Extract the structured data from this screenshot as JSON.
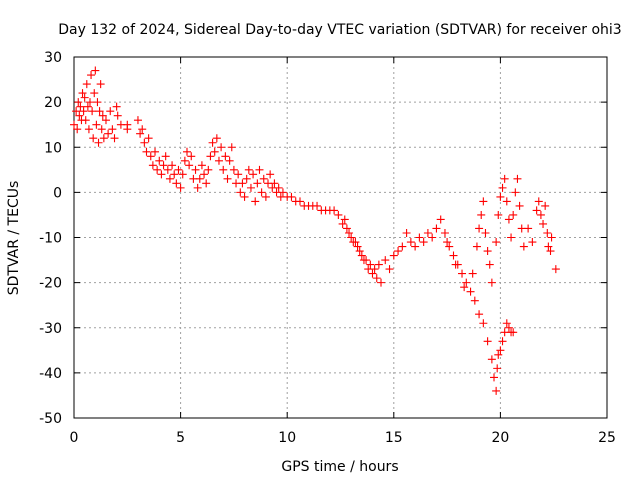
{
  "chart_data": {
    "type": "scatter",
    "title": "Day 132 of 2024, Sidereal Day-to-day VTEC variation (SDTVAR) for receiver ohi3",
    "xlabel": "GPS time / hours",
    "ylabel": "SDTVAR / TECUs",
    "xlim": [
      0,
      25
    ],
    "ylim": [
      -50,
      30
    ],
    "xticks": [
      0,
      5,
      10,
      15,
      20,
      25
    ],
    "yticks": [
      -50,
      -40,
      -30,
      -20,
      -10,
      0,
      10,
      20,
      30
    ],
    "xtick_labels": [
      "0",
      "5",
      "10",
      "15",
      "20",
      "25"
    ],
    "ytick_labels": [
      "-50",
      "-40",
      "-30",
      "-20",
      "-10",
      "0",
      "10",
      "20",
      "30"
    ],
    "grid": true,
    "marker": "+",
    "color": "#ff0000",
    "series": [
      {
        "name": "SDTVAR",
        "points": [
          [
            0.0,
            15
          ],
          [
            0.1,
            18
          ],
          [
            0.15,
            14
          ],
          [
            0.2,
            20
          ],
          [
            0.25,
            17
          ],
          [
            0.3,
            19
          ],
          [
            0.35,
            16
          ],
          [
            0.4,
            22
          ],
          [
            0.45,
            18
          ],
          [
            0.5,
            21
          ],
          [
            0.55,
            16
          ],
          [
            0.6,
            24
          ],
          [
            0.65,
            19
          ],
          [
            0.7,
            14
          ],
          [
            0.75,
            20
          ],
          [
            0.8,
            26
          ],
          [
            0.85,
            18
          ],
          [
            0.9,
            12
          ],
          [
            0.95,
            22
          ],
          [
            1.0,
            27
          ],
          [
            1.05,
            15
          ],
          [
            1.1,
            20
          ],
          [
            1.15,
            11
          ],
          [
            1.2,
            18
          ],
          [
            1.25,
            24
          ],
          [
            1.3,
            14
          ],
          [
            1.35,
            17
          ],
          [
            1.4,
            12
          ],
          [
            1.5,
            16
          ],
          [
            1.6,
            13
          ],
          [
            1.7,
            18
          ],
          [
            1.8,
            14
          ],
          [
            1.9,
            12
          ],
          [
            2.0,
            19
          ],
          [
            2.05,
            17
          ],
          [
            2.2,
            15
          ],
          [
            2.5,
            15
          ],
          [
            2.5,
            14
          ],
          [
            3.0,
            16
          ],
          [
            3.1,
            13
          ],
          [
            3.2,
            14
          ],
          [
            3.3,
            11
          ],
          [
            3.4,
            9
          ],
          [
            3.5,
            12
          ],
          [
            3.6,
            8
          ],
          [
            3.7,
            6
          ],
          [
            3.8,
            9
          ],
          [
            3.9,
            5
          ],
          [
            4.0,
            7
          ],
          [
            4.1,
            4
          ],
          [
            4.2,
            6
          ],
          [
            4.3,
            8
          ],
          [
            4.4,
            5
          ],
          [
            4.5,
            3
          ],
          [
            4.6,
            6
          ],
          [
            4.7,
            4
          ],
          [
            4.8,
            2
          ],
          [
            4.9,
            5
          ],
          [
            5.0,
            1
          ],
          [
            5.1,
            4
          ],
          [
            5.2,
            7
          ],
          [
            5.3,
            9
          ],
          [
            5.4,
            6
          ],
          [
            5.5,
            8
          ],
          [
            5.6,
            3
          ],
          [
            5.7,
            5
          ],
          [
            5.8,
            1
          ],
          [
            5.9,
            3
          ],
          [
            6.0,
            6
          ],
          [
            6.1,
            4
          ],
          [
            6.2,
            2
          ],
          [
            6.3,
            5
          ],
          [
            6.4,
            8
          ],
          [
            6.5,
            11
          ],
          [
            6.6,
            9
          ],
          [
            6.7,
            12
          ],
          [
            6.8,
            7
          ],
          [
            6.9,
            10
          ],
          [
            7.0,
            5
          ],
          [
            7.1,
            8
          ],
          [
            7.2,
            3
          ],
          [
            7.3,
            7
          ],
          [
            7.4,
            10
          ],
          [
            7.5,
            5
          ],
          [
            7.6,
            2
          ],
          [
            7.7,
            4
          ],
          [
            7.8,
            0
          ],
          [
            7.9,
            2
          ],
          [
            8.0,
            -1
          ],
          [
            8.1,
            3
          ],
          [
            8.2,
            5
          ],
          [
            8.3,
            1
          ],
          [
            8.4,
            4
          ],
          [
            8.5,
            -2
          ],
          [
            8.6,
            2
          ],
          [
            8.7,
            5
          ],
          [
            8.8,
            0
          ],
          [
            8.9,
            3
          ],
          [
            9.0,
            -1
          ],
          [
            9.1,
            2
          ],
          [
            9.2,
            4
          ],
          [
            9.3,
            1
          ],
          [
            9.4,
            2
          ],
          [
            9.5,
            0
          ],
          [
            9.6,
            1
          ],
          [
            9.7,
            -1
          ],
          [
            9.8,
            0
          ],
          [
            10.0,
            -1
          ],
          [
            10.2,
            -1
          ],
          [
            10.4,
            -2
          ],
          [
            10.6,
            -2
          ],
          [
            10.8,
            -3
          ],
          [
            11.0,
            -3
          ],
          [
            11.2,
            -3
          ],
          [
            11.4,
            -3
          ],
          [
            11.6,
            -4
          ],
          [
            11.8,
            -4
          ],
          [
            12.0,
            -4
          ],
          [
            12.2,
            -4
          ],
          [
            12.4,
            -5
          ],
          [
            12.6,
            -7
          ],
          [
            12.8,
            -8
          ],
          [
            13.0,
            -10
          ],
          [
            13.2,
            -11
          ],
          [
            13.4,
            -13
          ],
          [
            13.6,
            -15
          ],
          [
            13.8,
            -17
          ],
          [
            14.0,
            -18
          ],
          [
            14.2,
            -19
          ],
          [
            14.4,
            -20
          ],
          [
            12.7,
            -6
          ],
          [
            12.9,
            -9
          ],
          [
            13.1,
            -11
          ],
          [
            13.3,
            -12
          ],
          [
            13.5,
            -14
          ],
          [
            13.7,
            -15
          ],
          [
            13.9,
            -16
          ],
          [
            14.1,
            -17
          ],
          [
            14.3,
            -16
          ],
          [
            14.6,
            -15
          ],
          [
            14.8,
            -17
          ],
          [
            15.0,
            -14
          ],
          [
            15.2,
            -13
          ],
          [
            15.4,
            -12
          ],
          [
            15.6,
            -9
          ],
          [
            15.8,
            -11
          ],
          [
            16.0,
            -12
          ],
          [
            16.2,
            -10
          ],
          [
            16.4,
            -11
          ],
          [
            16.6,
            -9
          ],
          [
            16.8,
            -10
          ],
          [
            17.0,
            -8
          ],
          [
            17.2,
            -6
          ],
          [
            17.4,
            -9
          ],
          [
            17.6,
            -12
          ],
          [
            17.8,
            -14
          ],
          [
            18.0,
            -16
          ],
          [
            18.2,
            -18
          ],
          [
            18.4,
            -20
          ],
          [
            18.6,
            -22
          ],
          [
            18.8,
            -24
          ],
          [
            19.0,
            -27
          ],
          [
            19.2,
            -29
          ],
          [
            19.4,
            -33
          ],
          [
            19.6,
            -37
          ],
          [
            19.7,
            -41
          ],
          [
            19.8,
            -44
          ],
          [
            19.85,
            -39
          ],
          [
            19.9,
            -36
          ],
          [
            20.0,
            -35
          ],
          [
            20.1,
            -33
          ],
          [
            20.2,
            -31
          ],
          [
            20.3,
            -29
          ],
          [
            20.4,
            -30
          ],
          [
            20.5,
            -31
          ],
          [
            20.6,
            -31
          ],
          [
            17.5,
            -11
          ],
          [
            17.9,
            -16
          ],
          [
            18.3,
            -21
          ],
          [
            18.7,
            -18
          ],
          [
            18.9,
            -12
          ],
          [
            19.0,
            -8
          ],
          [
            19.1,
            -5
          ],
          [
            19.2,
            -2
          ],
          [
            19.3,
            -9
          ],
          [
            19.4,
            -13
          ],
          [
            19.5,
            -16
          ],
          [
            19.6,
            -20
          ],
          [
            19.8,
            -11
          ],
          [
            19.9,
            -5
          ],
          [
            20.0,
            -1
          ],
          [
            20.1,
            1
          ],
          [
            20.2,
            3
          ],
          [
            20.3,
            -2
          ],
          [
            20.4,
            -6
          ],
          [
            20.5,
            -10
          ],
          [
            20.6,
            -5
          ],
          [
            20.7,
            0
          ],
          [
            20.8,
            3
          ],
          [
            20.9,
            -3
          ],
          [
            21.0,
            -8
          ],
          [
            21.1,
            -12
          ],
          [
            21.3,
            -8
          ],
          [
            21.5,
            -11
          ],
          [
            21.7,
            -4
          ],
          [
            21.8,
            -2
          ],
          [
            21.9,
            -5
          ],
          [
            22.0,
            -7
          ],
          [
            22.1,
            -3
          ],
          [
            22.2,
            -9
          ],
          [
            22.25,
            -12
          ],
          [
            22.35,
            -13
          ],
          [
            22.4,
            -10
          ],
          [
            22.6,
            -17
          ]
        ]
      }
    ]
  }
}
